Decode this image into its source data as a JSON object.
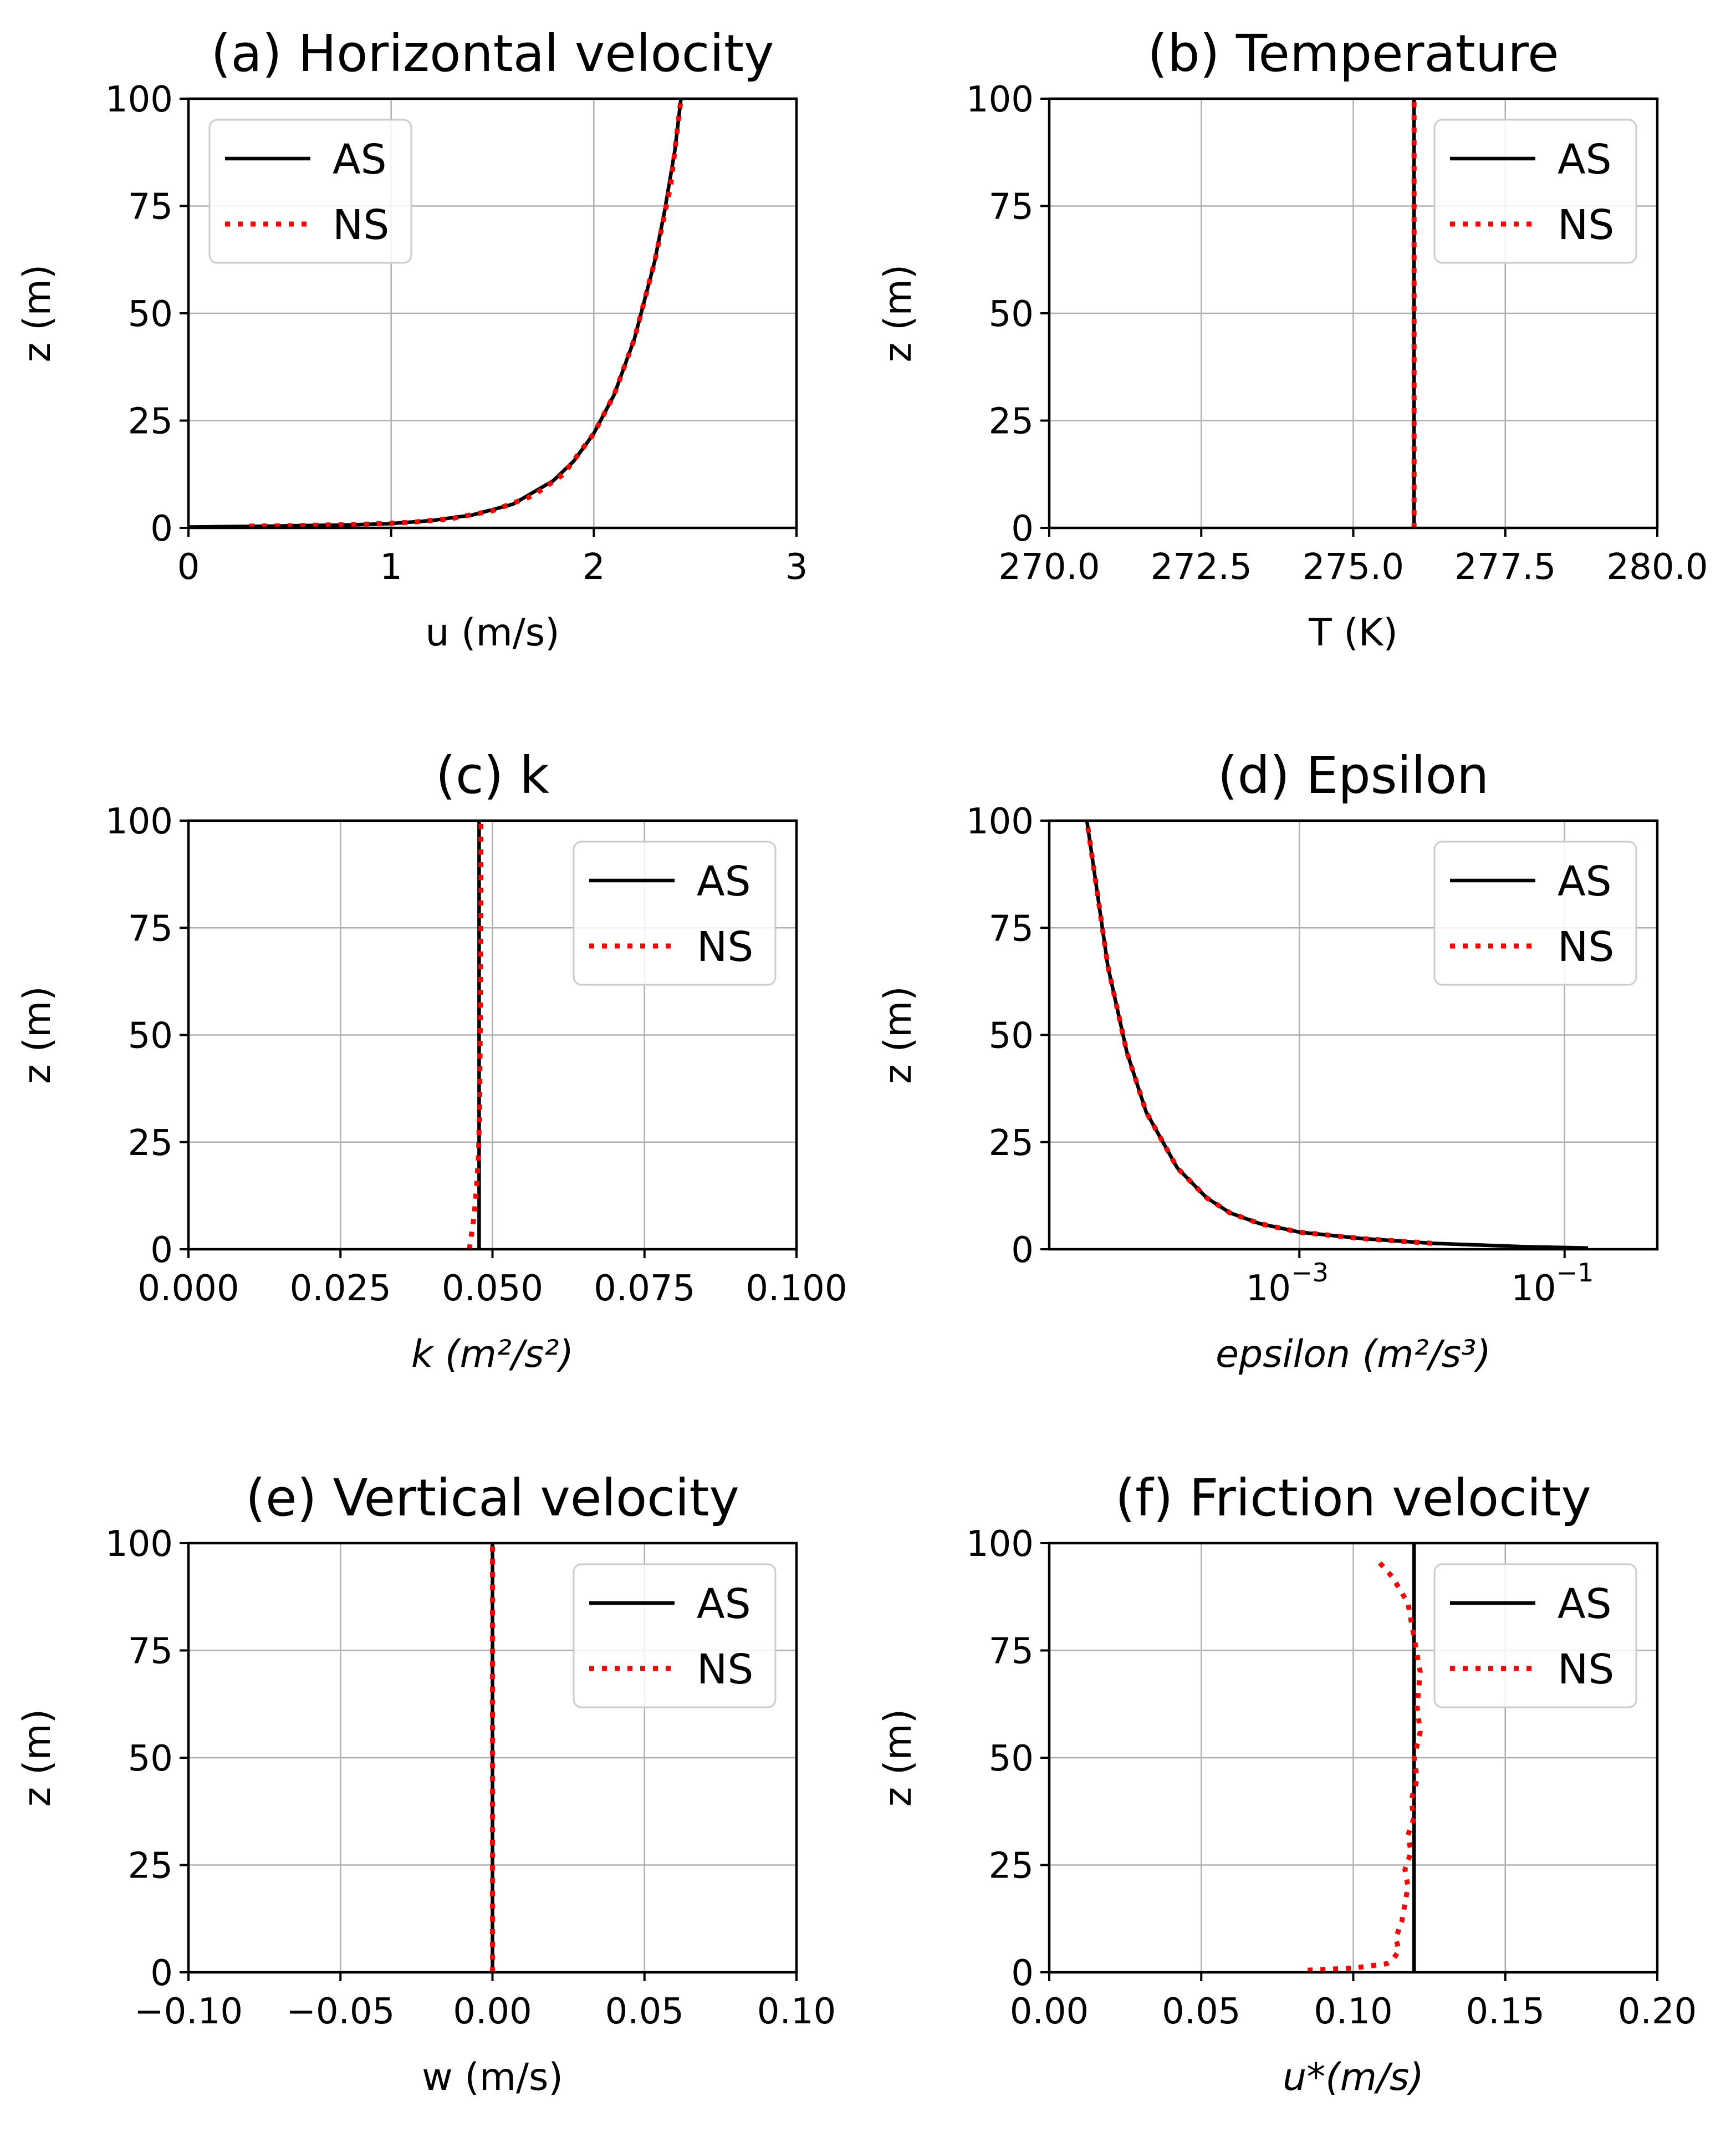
{
  "chart_data": [
    {
      "type": "line",
      "id": "a",
      "xscale": "linear",
      "title": "(a) Horizontal velocity",
      "xlabel": "u (m/s)",
      "ylabel": "z (m)",
      "xlim": [
        0,
        3
      ],
      "ylim": [
        0,
        100
      ],
      "xticks": [
        0,
        1,
        2,
        3
      ],
      "xtick_labels": [
        "0",
        "1",
        "2",
        "3"
      ],
      "yticks": [
        0,
        25,
        50,
        75,
        100
      ],
      "ytick_labels": [
        "0",
        "25",
        "50",
        "75",
        "100"
      ],
      "legend_position": "top-left",
      "series": [
        {
          "name": "AS",
          "style": "solid",
          "color": "#000000",
          "x": [
            0.0,
            0.4,
            0.8,
            1.0,
            1.2,
            1.4,
            1.6,
            1.8,
            1.9,
            2.0,
            2.1,
            2.2,
            2.3,
            2.35,
            2.4,
            2.43
          ],
          "y": [
            0.2,
            0.4,
            0.7,
            1.0,
            1.7,
            3.0,
            5.5,
            11,
            15.5,
            22,
            31,
            44,
            62,
            74,
            88,
            100
          ]
        },
        {
          "name": "NS",
          "style": "dotted",
          "color": "#ff0000",
          "x": [
            0.3,
            0.6,
            0.9,
            1.1,
            1.3,
            1.5,
            1.7,
            1.85,
            2.0,
            2.1,
            2.2,
            2.3,
            2.38,
            2.43
          ],
          "y": [
            0.4,
            0.6,
            0.9,
            1.3,
            2.2,
            4.0,
            7.5,
            12.5,
            22,
            31,
            44,
            62,
            80,
            100
          ]
        }
      ]
    },
    {
      "type": "line",
      "id": "b",
      "xscale": "linear",
      "title": "(b) Temperature",
      "xlabel": "T (K)",
      "ylabel": "z (m)",
      "xlim": [
        270,
        280
      ],
      "ylim": [
        0,
        100
      ],
      "xticks": [
        270,
        272.5,
        275,
        277.5,
        280
      ],
      "xtick_labels": [
        "270.0",
        "272.5",
        "275.0",
        "277.5",
        "280.0"
      ],
      "yticks": [
        0,
        25,
        50,
        75,
        100
      ],
      "ytick_labels": [
        "0",
        "25",
        "50",
        "75",
        "100"
      ],
      "legend_position": "top-right",
      "series": [
        {
          "name": "AS",
          "style": "solid",
          "color": "#000000",
          "x": [
            276,
            276
          ],
          "y": [
            0,
            100
          ]
        },
        {
          "name": "NS",
          "style": "dotted",
          "color": "#ff0000",
          "x": [
            276,
            276
          ],
          "y": [
            0,
            100
          ]
        }
      ]
    },
    {
      "type": "line",
      "id": "c",
      "xscale": "linear",
      "title": "(c) k",
      "xlabel": "k (m²/s²)",
      "ylabel": "z (m)",
      "xlim": [
        0,
        0.1
      ],
      "ylim": [
        0,
        100
      ],
      "xticks": [
        0,
        0.025,
        0.05,
        0.075,
        0.1
      ],
      "xtick_labels": [
        "0.000",
        "0.025",
        "0.050",
        "0.075",
        "0.100"
      ],
      "yticks": [
        0,
        25,
        50,
        75,
        100
      ],
      "ytick_labels": [
        "0",
        "25",
        "50",
        "75",
        "100"
      ],
      "legend_position": "top-right",
      "series": [
        {
          "name": "AS",
          "style": "solid",
          "color": "#000000",
          "x": [
            0.0478,
            0.0478
          ],
          "y": [
            0,
            100
          ]
        },
        {
          "name": "NS",
          "style": "dotted",
          "color": "#ff0000",
          "x": [
            0.0462,
            0.0465,
            0.047,
            0.0474,
            0.0477,
            0.0479,
            0.048,
            0.0481,
            0.0481
          ],
          "y": [
            0,
            3,
            8,
            15,
            22,
            35,
            55,
            80,
            100
          ]
        }
      ]
    },
    {
      "type": "line",
      "id": "d",
      "xscale": "log",
      "title": "(d) Epsilon",
      "xlabel": "epsilon (m²/s³)",
      "ylabel": "z (m)",
      "xlim": [
        1.3e-05,
        0.5
      ],
      "ylim": [
        0,
        100
      ],
      "xticks": [
        0.001,
        0.1
      ],
      "xtick_labels": [
        "10",
        "10"
      ],
      "xtick_exponents": [
        "−3",
        "−1"
      ],
      "yticks": [
        0,
        25,
        50,
        75,
        100
      ],
      "ytick_labels": [
        "0",
        "25",
        "50",
        "75",
        "100"
      ],
      "legend_position": "top-right",
      "series": [
        {
          "name": "AS",
          "style": "solid",
          "color": "#000000",
          "x": [
            0.15,
            0.05,
            0.01,
            0.003,
            0.001,
            0.0005,
            0.0003,
            0.0002,
            0.00012,
            7e-05,
            5e-05,
            3.6e-05,
            3e-05,
            2.5e-05
          ],
          "y": [
            0.3,
            0.6,
            1.4,
            2.5,
            4,
            6,
            8.5,
            12,
            19,
            32,
            46,
            66,
            83,
            100
          ]
        },
        {
          "name": "NS",
          "style": "dotted",
          "color": "#ff0000",
          "x": [
            0.01,
            0.003,
            0.001,
            0.0005,
            0.0003,
            0.0002,
            0.00012,
            7e-05,
            5e-05,
            3.6e-05,
            3e-05,
            2.5e-05
          ],
          "y": [
            1.4,
            2.5,
            4,
            6,
            8.5,
            12,
            19,
            32,
            46,
            66,
            83,
            100
          ]
        }
      ]
    },
    {
      "type": "line",
      "id": "e",
      "xscale": "linear",
      "title": "(e) Vertical velocity",
      "xlabel": "w (m/s)",
      "ylabel": "z (m)",
      "xlim": [
        -0.1,
        0.1
      ],
      "ylim": [
        0,
        100
      ],
      "xticks": [
        -0.1,
        -0.05,
        0,
        0.05,
        0.1
      ],
      "xtick_labels": [
        "−0.10",
        "−0.05",
        "0.00",
        "0.05",
        "0.10"
      ],
      "yticks": [
        0,
        25,
        50,
        75,
        100
      ],
      "ytick_labels": [
        "0",
        "25",
        "50",
        "75",
        "100"
      ],
      "legend_position": "top-right",
      "series": [
        {
          "name": "AS",
          "style": "solid",
          "color": "#000000",
          "x": [
            0,
            0
          ],
          "y": [
            0,
            100
          ]
        },
        {
          "name": "NS",
          "style": "dotted",
          "color": "#ff0000",
          "x": [
            0,
            0
          ],
          "y": [
            0,
            100
          ]
        }
      ]
    },
    {
      "type": "line",
      "id": "f",
      "xscale": "linear",
      "title": "(f) Friction velocity",
      "xlabel": "u*(m/s)",
      "ylabel": "z (m)",
      "xlim": [
        0,
        0.2
      ],
      "ylim": [
        0,
        100
      ],
      "xticks": [
        0,
        0.05,
        0.1,
        0.15,
        0.2
      ],
      "xtick_labels": [
        "0.00",
        "0.05",
        "0.10",
        "0.15",
        "0.20"
      ],
      "yticks": [
        0,
        25,
        50,
        75,
        100
      ],
      "ytick_labels": [
        "0",
        "25",
        "50",
        "75",
        "100"
      ],
      "legend_position": "top-right",
      "series": [
        {
          "name": "AS",
          "style": "solid",
          "color": "#000000",
          "x": [
            0.12,
            0.12
          ],
          "y": [
            0,
            100
          ]
        },
        {
          "name": "NS",
          "style": "dotted",
          "color": "#ff0000",
          "x": [
            0.085,
            0.1,
            0.111,
            0.113,
            0.115,
            0.114,
            0.116,
            0.117,
            0.118,
            0.117,
            0.119,
            0.118,
            0.12,
            0.119,
            0.121,
            0.12,
            0.122,
            0.121,
            0.122,
            0.12,
            0.118,
            0.113,
            0.108
          ],
          "y": [
            0.5,
            1,
            2,
            3,
            5,
            8,
            12,
            16,
            20,
            24,
            28,
            32,
            36,
            40,
            45,
            50,
            56,
            62,
            70,
            78,
            86,
            92,
            96
          ]
        }
      ]
    }
  ]
}
